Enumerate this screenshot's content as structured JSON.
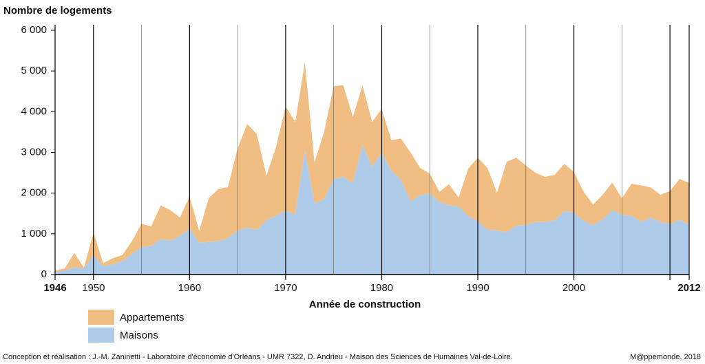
{
  "chart_data": {
    "type": "stacked-area",
    "title": "Nombre de logements",
    "x_label": "Année de construction",
    "credit": "Conception et réalisation : J.-M. Zaninetti - Laboratoire d'économie d'Orléans - UMR 7322,  D. Andrieu - Maison des Sciences de Humaines Val-de-Loire.",
    "source": "M@ppemonde, 2018",
    "x": [
      1946,
      1947,
      1948,
      1949,
      1950,
      1951,
      1952,
      1953,
      1954,
      1955,
      1956,
      1957,
      1958,
      1959,
      1960,
      1961,
      1962,
      1963,
      1964,
      1965,
      1966,
      1967,
      1968,
      1969,
      1970,
      1971,
      1972,
      1973,
      1974,
      1975,
      1976,
      1977,
      1978,
      1979,
      1980,
      1981,
      1982,
      1983,
      1984,
      1985,
      1986,
      1987,
      1988,
      1989,
      1990,
      1991,
      1992,
      1993,
      1994,
      1995,
      1996,
      1997,
      1998,
      1999,
      2000,
      2001,
      2002,
      2003,
      2004,
      2005,
      2006,
      2007,
      2008,
      2009,
      2010,
      2011,
      2012
    ],
    "series": [
      {
        "name": "Maisons",
        "color": "#aecbe9",
        "values": [
          50,
          100,
          180,
          150,
          470,
          200,
          250,
          330,
          500,
          680,
          700,
          870,
          830,
          950,
          1130,
          780,
          800,
          820,
          900,
          1080,
          1150,
          1100,
          1330,
          1450,
          1560,
          1480,
          3050,
          1750,
          1850,
          2350,
          2400,
          2250,
          3180,
          2650,
          3000,
          2550,
          2330,
          1800,
          1950,
          1990,
          1780,
          1700,
          1670,
          1430,
          1310,
          1100,
          1080,
          1040,
          1200,
          1220,
          1290,
          1290,
          1330,
          1560,
          1530,
          1320,
          1210,
          1360,
          1580,
          1470,
          1440,
          1290,
          1400,
          1290,
          1240,
          1340,
          1230
        ]
      },
      {
        "name": "Appartements",
        "color": "#f0bd83",
        "values": [
          50,
          50,
          350,
          20,
          560,
          80,
          150,
          150,
          320,
          570,
          480,
          830,
          750,
          450,
          790,
          290,
          1080,
          1280,
          1250,
          2020,
          2550,
          2350,
          1100,
          1680,
          2570,
          2270,
          2160,
          1010,
          1650,
          2280,
          2250,
          1620,
          1470,
          1100,
          1070,
          750,
          1010,
          1200,
          670,
          490,
          250,
          520,
          220,
          1170,
          1560,
          1520,
          930,
          1730,
          1670,
          1460,
          1210,
          1110,
          1120,
          1160,
          990,
          720,
          510,
          600,
          680,
          400,
          790,
          900,
          740,
          670,
          810,
          1010,
          1020
        ]
      }
    ],
    "xlim": [
      1946,
      2012
    ],
    "xticks": [
      1946,
      1950,
      1960,
      1970,
      1980,
      1990,
      2000,
      {
        "value": 2010,
        "label": null
      },
      2012
    ],
    "minor_xticks": [
      1955,
      1965,
      1975,
      1985,
      1995,
      2005
    ],
    "ylim": [
      0,
      6000
    ],
    "yticks": [
      0,
      {
        "value": 1000,
        "label": "1 000"
      },
      {
        "value": 2000,
        "label": "2 000"
      },
      {
        "value": 3000,
        "label": "3 000"
      },
      {
        "value": 4000,
        "label": "4 000"
      },
      {
        "value": 5000,
        "label": "5 000"
      },
      {
        "value": 6000,
        "label": "6 000"
      }
    ]
  }
}
